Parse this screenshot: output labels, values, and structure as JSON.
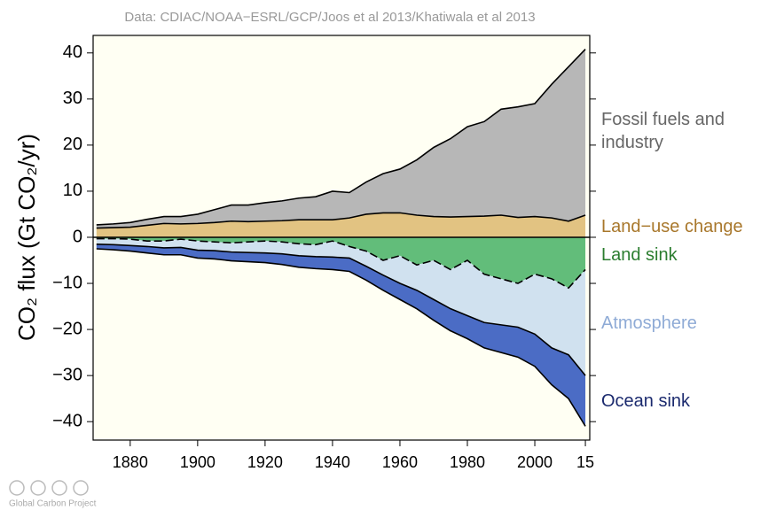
{
  "chart_data": {
    "type": "stacked_area",
    "source": "Data: CDIAC/NOAA−ESRL/GCP/Joos et al 2013/Khatiwala et al 2013",
    "y_label": "CO₂ flux (Gt CO₂/yr)",
    "x": [
      1870,
      1875,
      1880,
      1885,
      1890,
      1895,
      1900,
      1905,
      1910,
      1915,
      1920,
      1925,
      1930,
      1935,
      1940,
      1945,
      1950,
      1955,
      1960,
      1965,
      1970,
      1975,
      1980,
      1985,
      1990,
      1995,
      2000,
      2005,
      2010,
      2015
    ],
    "series": [
      {
        "name": "Land−use change",
        "color": "#e2c382",
        "label_color": "#a8772b",
        "values": [
          2.0,
          2.1,
          2.2,
          2.6,
          3.0,
          2.9,
          3.0,
          3.2,
          3.5,
          3.4,
          3.5,
          3.6,
          3.8,
          3.8,
          3.8,
          4.2,
          5.0,
          5.3,
          5.3,
          4.8,
          4.5,
          4.4,
          4.5,
          4.6,
          4.8,
          4.3,
          4.5,
          4.2,
          3.5,
          4.8
        ]
      },
      {
        "name": "Fossil fuels and industry",
        "color": "#b7b7b7",
        "label_color": "#666666",
        "values": [
          0.7,
          0.8,
          1.0,
          1.3,
          1.5,
          1.6,
          2.0,
          2.8,
          3.5,
          3.6,
          4.0,
          4.3,
          4.7,
          5.0,
          6.2,
          5.5,
          7.0,
          8.5,
          9.5,
          12.0,
          15.0,
          17.0,
          19.5,
          20.5,
          23.0,
          24.0,
          24.5,
          29.0,
          33.5,
          36.0
        ]
      },
      {
        "name": "Land sink",
        "color": "#62bd7a",
        "label_color": "#2b7d2f",
        "dashed": true,
        "values": [
          -0.3,
          -0.3,
          -0.4,
          -0.8,
          -0.8,
          -0.4,
          -0.8,
          -1.0,
          -1.2,
          -1.0,
          -0.8,
          -1.0,
          -1.4,
          -1.6,
          -0.8,
          -2.0,
          -3.0,
          -5.0,
          -4.0,
          -6.0,
          -5.0,
          -7.0,
          -5.0,
          -8.0,
          -9.0,
          -10.0,
          -8.0,
          -9.0,
          -11.0,
          -7.0
        ]
      },
      {
        "name": "Atmosphere",
        "color": "#d0e1ef",
        "label_color": "#8fabd6",
        "values": [
          -1.2,
          -1.3,
          -1.4,
          -1.2,
          -1.5,
          -1.8,
          -2.0,
          -1.9,
          -2.0,
          -2.3,
          -2.6,
          -2.6,
          -2.6,
          -2.6,
          -3.5,
          -2.5,
          -3.3,
          -3.2,
          -6.0,
          -5.5,
          -8.5,
          -8.5,
          -12.0,
          -10.5,
          -10.0,
          -9.5,
          -13.0,
          -15.0,
          -14.5,
          -23.0
        ]
      },
      {
        "name": "Ocean sink",
        "color": "#4b6cc5",
        "label_color": "#1b2a6e",
        "values": [
          -1.0,
          -1.1,
          -1.2,
          -1.4,
          -1.5,
          -1.6,
          -1.7,
          -1.8,
          -1.9,
          -2.0,
          -2.1,
          -2.3,
          -2.5,
          -2.6,
          -2.7,
          -2.9,
          -3.0,
          -3.3,
          -3.5,
          -4.0,
          -4.5,
          -4.8,
          -5.0,
          -5.5,
          -6.0,
          -6.5,
          -7.0,
          -8.0,
          -9.5,
          -11.0
        ]
      }
    ],
    "xlim": [
      1869,
      2016.3
    ],
    "xticks": [
      1880,
      1900,
      1920,
      1940,
      1960,
      1980,
      2000,
      {
        "value": 2015,
        "label": "15"
      }
    ],
    "ylim": [
      -44,
      43.8
    ],
    "yticks": [
      {
        "value": -40,
        "label": "−40"
      },
      {
        "value": -30,
        "label": "−30"
      },
      {
        "value": -20,
        "label": "−20"
      },
      {
        "value": -10,
        "label": "−10"
      },
      0,
      10,
      20,
      30,
      40
    ],
    "background": "#fffff3"
  },
  "footer": "Global Carbon Project"
}
